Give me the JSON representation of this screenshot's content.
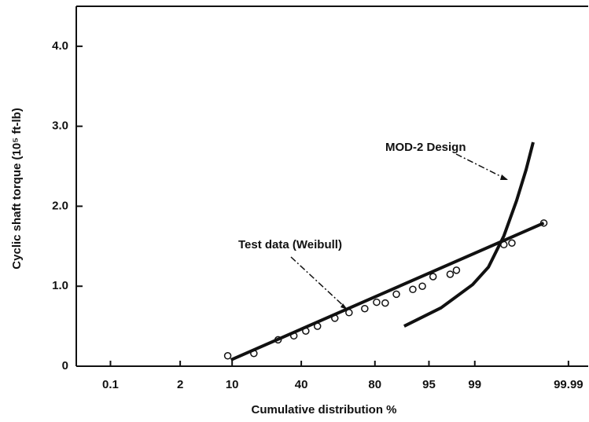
{
  "chart_data": {
    "type": "line",
    "xlabel": "Cumulative distribution %",
    "ylabel": "Cyclic shaft torque (10⁵ ft-lb)",
    "xscale": "probit",
    "xlim": [
      0.016,
      99.997
    ],
    "xticks": [
      0.1,
      2,
      10,
      40,
      80,
      95,
      99,
      99.99
    ],
    "ylim": [
      0,
      4.5
    ],
    "yticks": [
      0,
      {
        "value": 1,
        "label": "1.0"
      },
      {
        "value": 2,
        "label": "2.0"
      },
      {
        "value": 3,
        "label": "3.0"
      },
      {
        "value": 4,
        "label": "4.0"
      }
    ],
    "series": [
      {
        "color": "#111",
        "marker": "circle",
        "line": false,
        "x": [
          8.9,
          16.9,
          27.5,
          35.8,
          42.6,
          49.5,
          59.7,
          67.6,
          75.5,
          80.7,
          84.0,
          87.7,
          92.0,
          93.9,
          95.6,
          97.5,
          98.0,
          99.71,
          99.8,
          99.96
        ],
        "values": [
          0.13,
          0.16,
          0.33,
          0.38,
          0.44,
          0.5,
          0.6,
          0.67,
          0.72,
          0.8,
          0.79,
          0.9,
          0.96,
          1.0,
          1.12,
          1.15,
          1.2,
          1.52,
          1.54,
          1.79
        ]
      },
      {
        "color": "#111",
        "x": [
          9.7,
          99.96
        ],
        "values": [
          0.08,
          1.79
        ]
      },
      {
        "color": "#111",
        "x": [
          89.9,
          96.6,
          98.91,
          99.43,
          99.71,
          99.84,
          99.9,
          99.93
        ],
        "values": [
          0.5,
          0.73,
          1.02,
          1.24,
          1.63,
          2.07,
          2.46,
          2.8
        ]
      }
    ],
    "annotations": [
      {
        "text": "Test data (Weibull)"
      },
      {
        "text": "MOD-2 Design"
      }
    ]
  }
}
